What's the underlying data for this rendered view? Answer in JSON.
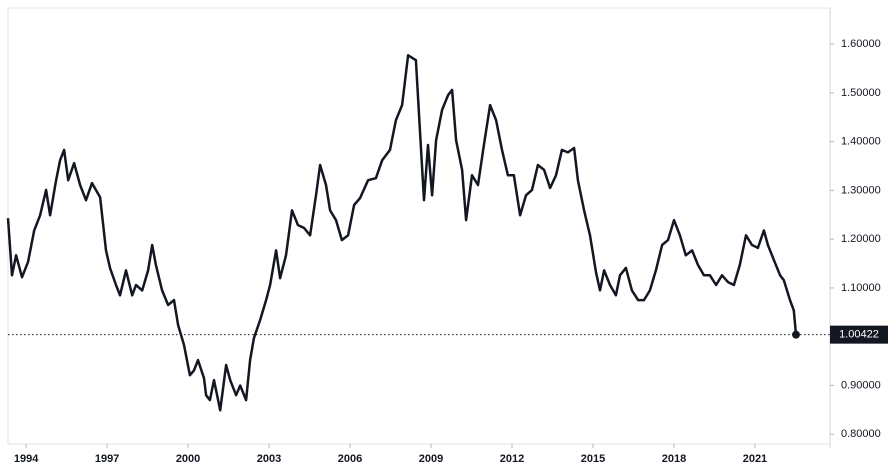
{
  "chart_data": {
    "type": "line",
    "color": "#131722",
    "x": [
      1993.33,
      1993.48,
      1993.63,
      1993.85,
      1994.07,
      1994.3,
      1994.52,
      1994.74,
      1994.89,
      1995.11,
      1995.26,
      1995.41,
      1995.56,
      1995.78,
      1996.0,
      1996.22,
      1996.44,
      1996.74,
      1996.96,
      1997.11,
      1997.33,
      1997.48,
      1997.7,
      1997.93,
      1998.07,
      1998.3,
      1998.52,
      1998.67,
      1998.81,
      1999.04,
      1999.26,
      1999.48,
      1999.63,
      1999.85,
      2000.07,
      2000.22,
      2000.37,
      2000.59,
      2000.67,
      2000.81,
      2000.96,
      2001.19,
      2001.41,
      2001.56,
      2001.78,
      2001.93,
      2002.15,
      2002.3,
      2002.44,
      2002.67,
      2002.89,
      2003.04,
      2003.26,
      2003.41,
      2003.63,
      2003.85,
      2004.07,
      2004.3,
      2004.52,
      2004.74,
      2004.89,
      2005.11,
      2005.26,
      2005.48,
      2005.7,
      2005.93,
      2006.15,
      2006.37,
      2006.67,
      2006.96,
      2007.19,
      2007.48,
      2007.7,
      2007.93,
      2008.15,
      2008.44,
      2008.59,
      2008.74,
      2008.89,
      2009.04,
      2009.19,
      2009.41,
      2009.63,
      2009.78,
      2009.93,
      2010.15,
      2010.3,
      2010.52,
      2010.74,
      2010.96,
      2011.19,
      2011.41,
      2011.63,
      2011.85,
      2012.07,
      2012.3,
      2012.52,
      2012.74,
      2012.96,
      2013.19,
      2013.41,
      2013.63,
      2013.85,
      2014.07,
      2014.3,
      2014.44,
      2014.67,
      2014.89,
      2015.11,
      2015.26,
      2015.41,
      2015.63,
      2015.85,
      2016.0,
      2016.22,
      2016.44,
      2016.67,
      2016.89,
      2017.11,
      2017.33,
      2017.56,
      2017.78,
      2018.0,
      2018.22,
      2018.44,
      2018.67,
      2018.89,
      2019.11,
      2019.33,
      2019.56,
      2019.78,
      2020.0,
      2020.22,
      2020.44,
      2020.67,
      2020.89,
      2021.11,
      2021.33,
      2021.48,
      2021.7,
      2021.93,
      2022.07,
      2022.3,
      2022.44,
      2022.52
    ],
    "values": [
      1.243,
      1.126,
      1.167,
      1.122,
      1.153,
      1.218,
      1.249,
      1.301,
      1.249,
      1.321,
      1.362,
      1.383,
      1.321,
      1.356,
      1.311,
      1.28,
      1.315,
      1.286,
      1.177,
      1.141,
      1.106,
      1.085,
      1.136,
      1.085,
      1.106,
      1.095,
      1.136,
      1.188,
      1.147,
      1.095,
      1.065,
      1.075,
      1.024,
      0.983,
      0.921,
      0.931,
      0.952,
      0.915,
      0.88,
      0.87,
      0.911,
      0.849,
      0.942,
      0.911,
      0.88,
      0.9,
      0.87,
      0.952,
      0.997,
      1.034,
      1.075,
      1.106,
      1.177,
      1.12,
      1.167,
      1.259,
      1.229,
      1.223,
      1.208,
      1.29,
      1.352,
      1.311,
      1.259,
      1.239,
      1.198,
      1.208,
      1.27,
      1.284,
      1.321,
      1.325,
      1.362,
      1.383,
      1.444,
      1.475,
      1.577,
      1.567,
      1.424,
      1.28,
      1.393,
      1.29,
      1.403,
      1.465,
      1.495,
      1.506,
      1.403,
      1.342,
      1.239,
      1.331,
      1.311,
      1.393,
      1.475,
      1.444,
      1.383,
      1.331,
      1.331,
      1.249,
      1.29,
      1.301,
      1.352,
      1.342,
      1.305,
      1.331,
      1.383,
      1.378,
      1.387,
      1.321,
      1.259,
      1.208,
      1.132,
      1.095,
      1.136,
      1.106,
      1.085,
      1.126,
      1.141,
      1.095,
      1.075,
      1.075,
      1.095,
      1.136,
      1.188,
      1.198,
      1.239,
      1.208,
      1.167,
      1.177,
      1.147,
      1.126,
      1.126,
      1.106,
      1.126,
      1.112,
      1.106,
      1.147,
      1.208,
      1.188,
      1.182,
      1.218,
      1.188,
      1.157,
      1.126,
      1.116,
      1.075,
      1.054,
      1.00422
    ],
    "xlim": [
      1993.33,
      2023.78
    ],
    "ylim": [
      0.78,
      1.674
    ],
    "xticks": [
      1994,
      1997,
      2000,
      2003,
      2006,
      2009,
      2012,
      2015,
      2018,
      2021
    ],
    "yticks": [
      {
        "value": 0.8,
        "label": "0.80000"
      },
      {
        "value": 0.9,
        "label": "0.90000"
      },
      {
        "value": 1.0,
        "label": "1.00000"
      },
      {
        "value": 1.1,
        "label": "1.10000"
      },
      {
        "value": 1.2,
        "label": "1.20000"
      },
      {
        "value": 1.3,
        "label": "1.30000"
      },
      {
        "value": 1.4,
        "label": "1.40000"
      },
      {
        "value": 1.5,
        "label": "1.50000"
      },
      {
        "value": 1.6,
        "label": "1.60000"
      }
    ]
  }
}
